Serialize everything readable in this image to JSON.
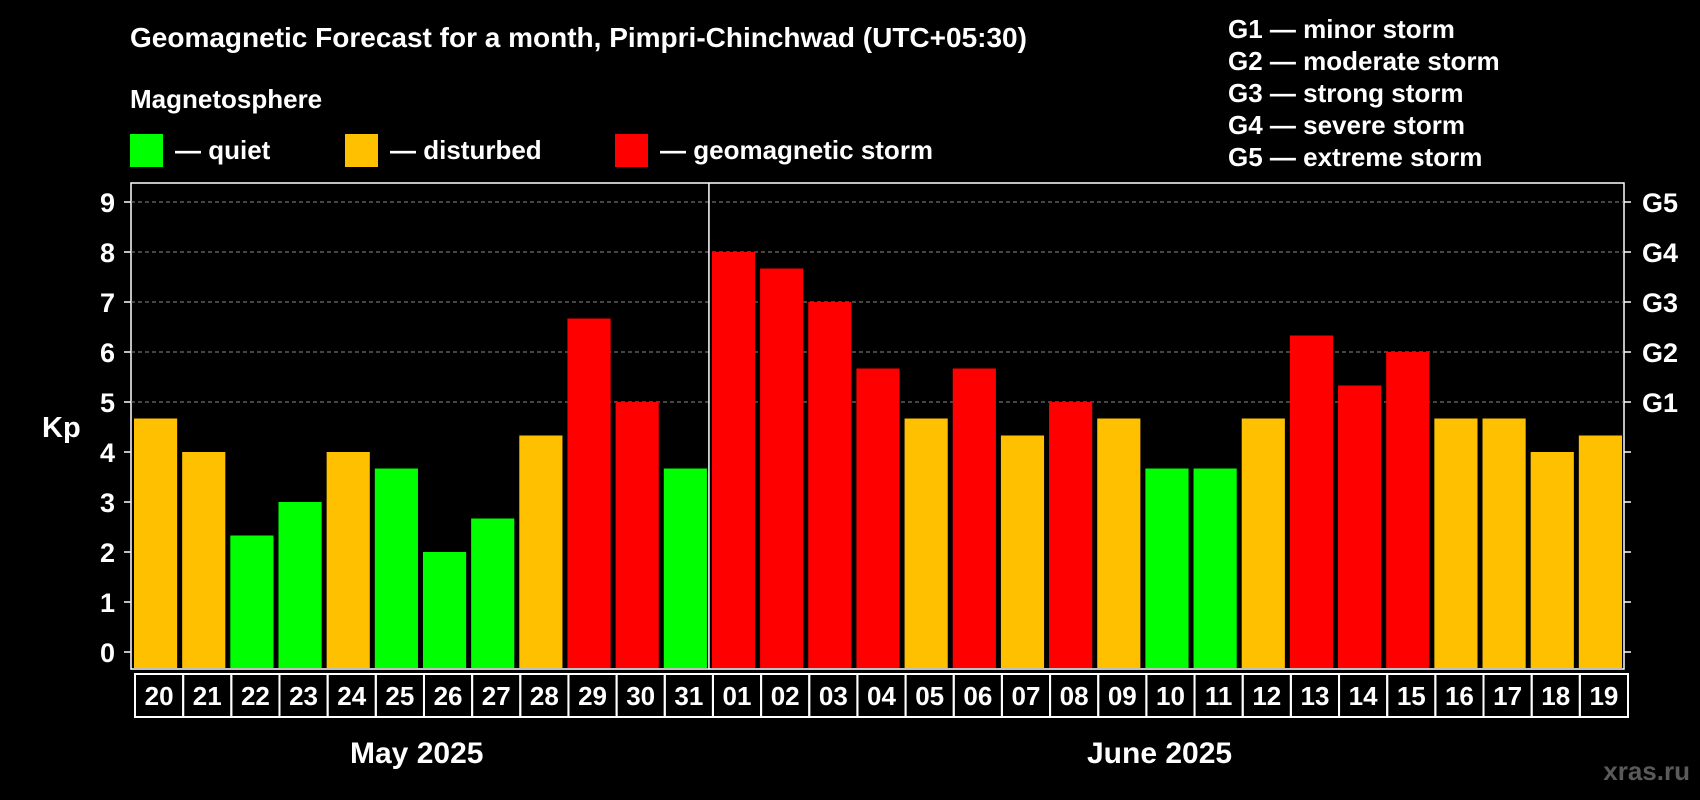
{
  "title": "Geomagnetic Forecast for a month, Pimpri-Chinchwad (UTC+05:30)",
  "legend_title": "Magnetosphere",
  "legend": [
    {
      "label": "— quiet",
      "color": "#00ff00"
    },
    {
      "label": "— disturbed",
      "color": "#ffc000"
    },
    {
      "label": "— geomagnetic storm",
      "color": "#ff0000"
    }
  ],
  "storm_scale": [
    "G1 — minor storm",
    "G2 — moderate storm",
    "G3 — strong storm",
    "G4 — severe storm",
    "G5 — extreme storm"
  ],
  "months": [
    "May 2025",
    "June 2025"
  ],
  "watermark": "xras.ru",
  "colors": {
    "quiet": "#00ff00",
    "disturbed": "#ffc000",
    "storm": "#ff0000"
  },
  "chart_data": {
    "type": "bar",
    "ylabel": "Kp",
    "ylim": [
      0,
      9
    ],
    "yticks": [
      "0",
      "1",
      "2",
      "3",
      "4",
      "5",
      "6",
      "7",
      "8",
      "9"
    ],
    "right_ticks": [
      {
        "label": "G1",
        "kp": 5
      },
      {
        "label": "G2",
        "kp": 6
      },
      {
        "label": "G3",
        "kp": 7
      },
      {
        "label": "G4",
        "kp": 8
      },
      {
        "label": "G5",
        "kp": 9
      }
    ],
    "categories": [
      "20",
      "21",
      "22",
      "23",
      "24",
      "25",
      "26",
      "27",
      "28",
      "29",
      "30",
      "31",
      "01",
      "02",
      "03",
      "04",
      "05",
      "06",
      "07",
      "08",
      "09",
      "10",
      "11",
      "12",
      "13",
      "14",
      "15",
      "16",
      "17",
      "18",
      "19"
    ],
    "values": [
      4.67,
      4.0,
      2.33,
      3.0,
      4.0,
      3.67,
      2.0,
      2.67,
      4.33,
      6.67,
      5.0,
      3.67,
      8.0,
      7.67,
      7.0,
      5.67,
      4.67,
      5.67,
      4.33,
      5.0,
      4.67,
      3.67,
      3.67,
      4.67,
      6.33,
      5.33,
      6.0,
      4.67,
      4.67,
      4.0,
      4.33
    ],
    "levels": [
      "disturbed",
      "disturbed",
      "quiet",
      "quiet",
      "disturbed",
      "quiet",
      "quiet",
      "quiet",
      "disturbed",
      "storm",
      "storm",
      "quiet",
      "storm",
      "storm",
      "storm",
      "storm",
      "disturbed",
      "storm",
      "disturbed",
      "storm",
      "disturbed",
      "quiet",
      "quiet",
      "disturbed",
      "storm",
      "storm",
      "storm",
      "disturbed",
      "disturbed",
      "disturbed",
      "disturbed"
    ],
    "month_split_index": 12,
    "grid": true
  }
}
